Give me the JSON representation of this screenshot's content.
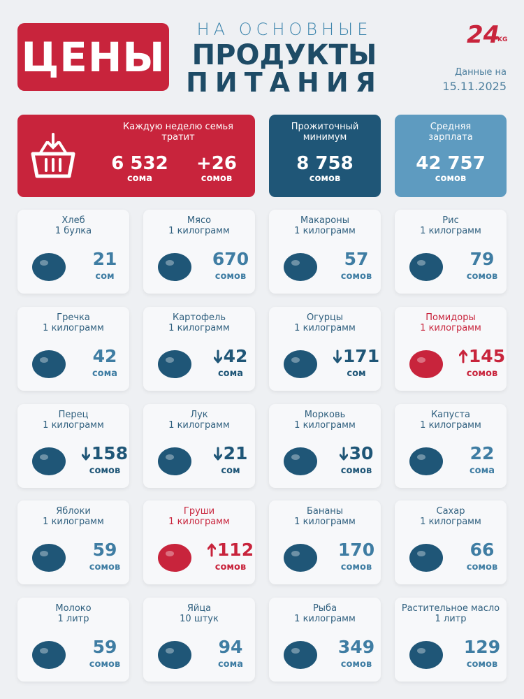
{
  "header": {
    "title": "ЦЕНЫ",
    "subtitle_line1": "НА ОСНОВНЫЕ",
    "subtitle_line2": "ПРОДУКТЫ",
    "subtitle_line3": "ПИТАНИЯ",
    "logo": "24",
    "logo_suffix": "KG",
    "date_label": "Данные на",
    "date": "15.11.2025"
  },
  "summary": [
    {
      "label": "Каждую неделю семья тратит",
      "color": "#c8243c",
      "amounts": [
        {
          "value": "6 532",
          "unit": "сома"
        },
        {
          "value": "+26",
          "unit": "сомов"
        }
      ]
    },
    {
      "label": "Прожиточный минимум",
      "color": "#1f5677",
      "amounts": [
        {
          "value": "8 758",
          "unit": "сомов"
        }
      ]
    },
    {
      "label": "Средняя зарплата",
      "color": "#5e9bc0",
      "amounts": [
        {
          "value": "42 757",
          "unit": "сомов"
        }
      ]
    }
  ],
  "items": [
    {
      "name": "Хлеб",
      "unit": "1 булка",
      "price": 21,
      "currency": "сом"
    },
    {
      "name": "Мясо",
      "unit": "1 килограмм",
      "price": 670,
      "currency": "сомов"
    },
    {
      "name": "Макароны",
      "unit": "1 килограмм",
      "price": 57,
      "currency": "сомов"
    },
    {
      "name": "Рис",
      "unit": "1 килограмм",
      "price": 79,
      "currency": "сомов"
    },
    {
      "name": "Гречка",
      "unit": "1 килограмм",
      "price": 42,
      "currency": "сома"
    },
    {
      "name": "Картофель",
      "unit": "1 килограмм",
      "price": 42,
      "currency": "сома",
      "trend": "down"
    },
    {
      "name": "Огурцы",
      "unit": "1 килограмм",
      "price": 171,
      "currency": "сом",
      "trend": "down"
    },
    {
      "name": "Помидоры",
      "unit": "1 килограмм",
      "price": 145,
      "currency": "сомов",
      "trend": "up"
    },
    {
      "name": "Перец",
      "unit": "1 килограмм",
      "price": 158,
      "currency": "сомов",
      "trend": "down"
    },
    {
      "name": "Лук",
      "unit": "1 килограмм",
      "price": 21,
      "currency": "сом",
      "trend": "down"
    },
    {
      "name": "Морковь",
      "unit": "1 килограмм",
      "price": 30,
      "currency": "сомов",
      "trend": "down"
    },
    {
      "name": "Капуста",
      "unit": "1 килограмм",
      "price": 22,
      "currency": "сома"
    },
    {
      "name": "Яблоки",
      "unit": "1 килограмм",
      "price": 59,
      "currency": "сомов"
    },
    {
      "name": "Груши",
      "unit": "1 килограмм",
      "price": 112,
      "currency": "сомов",
      "trend": "up"
    },
    {
      "name": "Бананы",
      "unit": "1 килограмм",
      "price": 170,
      "currency": "сомов"
    },
    {
      "name": "Сахар",
      "unit": "1 килограмм",
      "price": 66,
      "currency": "сомов"
    },
    {
      "name": "Молоко",
      "unit": "1 литр",
      "price": 59,
      "currency": "сомов"
    },
    {
      "name": "Яйца",
      "unit": "10 штук",
      "price": 94,
      "currency": "сома"
    },
    {
      "name": "Рыба",
      "unit": "1 килограмм",
      "price": 349,
      "currency": "сомов"
    },
    {
      "name": "Растительное масло",
      "unit": "1 литр",
      "price": 129,
      "currency": "сомов"
    }
  ]
}
